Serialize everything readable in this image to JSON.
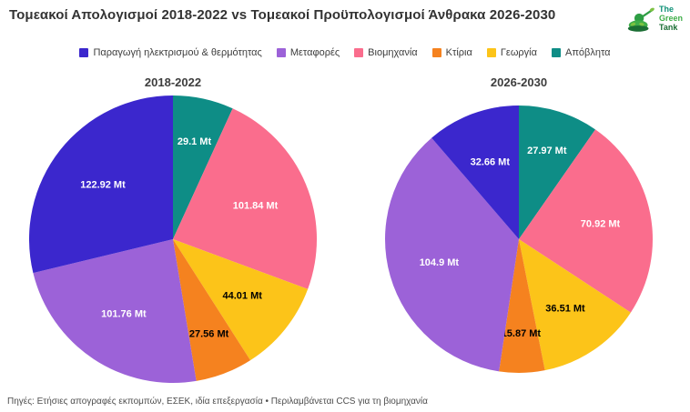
{
  "header": {
    "title": "Τομεακοί Απολογισμοί 2018-2022 vs Τομεακοί Προϋπολογισμοί Άνθρακα 2026-2030"
  },
  "logo": {
    "lines": [
      "The",
      "Green",
      "Tank"
    ]
  },
  "legend": {
    "items": [
      {
        "label": "Παραγωγή ηλεκτρισμού & θερμότητας",
        "color": "#3b27cd"
      },
      {
        "label": "Μεταφορές",
        "color": "#9c62d8"
      },
      {
        "label": "Βιομηχανία",
        "color": "#fa6d8d"
      },
      {
        "label": "Κτίρια",
        "color": "#f5821f"
      },
      {
        "label": "Γεωργία",
        "color": "#fcc419"
      },
      {
        "label": "Απόβλητα",
        "color": "#0e8d86"
      }
    ]
  },
  "chart_data": [
    {
      "type": "pie",
      "title": "2018-2022",
      "unit": "Mt",
      "start_angle": 0,
      "direction": "clockwise",
      "legend_position": "top",
      "slices": [
        {
          "label": "Απόβλητα",
          "value": 29.1,
          "text": "29.1 Mt",
          "color": "#0e8d86",
          "text_color": "#ffffff"
        },
        {
          "label": "Βιομηχανία",
          "value": 101.84,
          "text": "101.84 Mt",
          "color": "#fa6d8d",
          "text_color": "#ffffff"
        },
        {
          "label": "Γεωργία",
          "value": 44.01,
          "text": "44.01 Mt",
          "color": "#fcc419",
          "text_color": "#000000"
        },
        {
          "label": "Κτίρια",
          "value": 27.56,
          "text": "27.56 Mt",
          "color": "#f5821f",
          "text_color": "#000000"
        },
        {
          "label": "Μεταφορές",
          "value": 101.76,
          "text": "101.76 Mt",
          "color": "#9c62d8",
          "text_color": "#ffffff"
        },
        {
          "label": "Παραγωγή ηλεκτρισμού & θερμότητας",
          "value": 122.92,
          "text": "122.92 Mt",
          "color": "#3b27cd",
          "text_color": "#ffffff"
        }
      ]
    },
    {
      "type": "pie",
      "title": "2026-2030",
      "unit": "Mt",
      "start_angle": 0,
      "direction": "clockwise",
      "legend_position": "top",
      "slices": [
        {
          "label": "Απόβλητα",
          "value": 27.97,
          "text": "27.97 Mt",
          "color": "#0e8d86",
          "text_color": "#ffffff"
        },
        {
          "label": "Βιομηχανία",
          "value": 70.92,
          "text": "70.92 Mt",
          "color": "#fa6d8d",
          "text_color": "#ffffff"
        },
        {
          "label": "Γεωργία",
          "value": 36.51,
          "text": "36.51 Mt",
          "color": "#fcc419",
          "text_color": "#000000"
        },
        {
          "label": "Κτίρια",
          "value": 15.87,
          "text": "15.87 Mt",
          "color": "#f5821f",
          "text_color": "#000000"
        },
        {
          "label": "Μεταφορές",
          "value": 104.9,
          "text": "104.9 Mt",
          "color": "#9c62d8",
          "text_color": "#ffffff"
        },
        {
          "label": "Παραγωγή ηλεκτρισμού & θερμότητας",
          "value": 32.66,
          "text": "32.66 Mt",
          "color": "#3b27cd",
          "text_color": "#ffffff"
        }
      ]
    }
  ],
  "footer": {
    "source": "Πηγές: Ετήσιες απογραφές εκπομπών, ΕΣΕΚ, ιδία επεξεργασία • Περιλαμβάνεται CCS για τη βιομηχανία"
  }
}
